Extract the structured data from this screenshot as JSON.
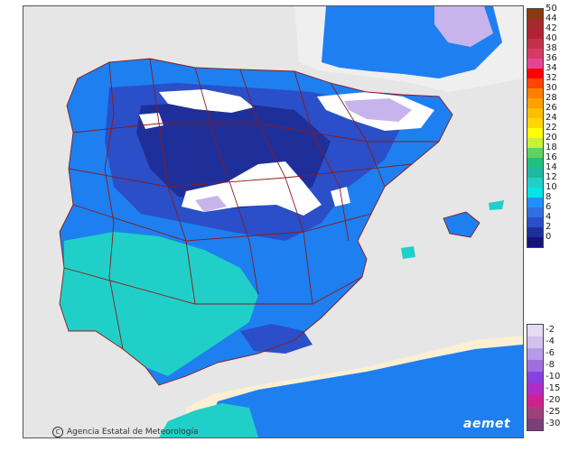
{
  "credit": {
    "text": "Agencia Estatal de Meteorología",
    "icon": "copyright-icon"
  },
  "logo": {
    "text": "aemet"
  },
  "legend": {
    "positive": [
      {
        "label": "50",
        "color": "#8b3a0f"
      },
      {
        "label": "44",
        "color": "#a52a2a"
      },
      {
        "label": "42",
        "color": "#b22234"
      },
      {
        "label": "40",
        "color": "#c4304a"
      },
      {
        "label": "38",
        "color": "#d63a66"
      },
      {
        "label": "36",
        "color": "#e84393"
      },
      {
        "label": "34",
        "color": "#ff0000"
      },
      {
        "label": "32",
        "color": "#ff4500"
      },
      {
        "label": "30",
        "color": "#ff7f00"
      },
      {
        "label": "28",
        "color": "#ff9f00"
      },
      {
        "label": "26",
        "color": "#ffbf00"
      },
      {
        "label": "24",
        "color": "#ffd700"
      },
      {
        "label": "22",
        "color": "#ffff00"
      },
      {
        "label": "20",
        "color": "#c8f03c"
      },
      {
        "label": "18",
        "color": "#5fd35f"
      },
      {
        "label": "16",
        "color": "#20c080"
      },
      {
        "label": "14",
        "color": "#1fb8a0"
      },
      {
        "label": "12",
        "color": "#20d0c8"
      },
      {
        "label": "10",
        "color": "#00e5e5"
      },
      {
        "label": "8",
        "color": "#1e90ff"
      },
      {
        "label": "6",
        "color": "#2f6fe0"
      },
      {
        "label": "4",
        "color": "#2a4fc8"
      },
      {
        "label": "2",
        "color": "#1f2f9a"
      },
      {
        "label": "0",
        "color": "#14147a"
      }
    ],
    "negative": [
      {
        "label": "-2",
        "color": "#e6dcf5"
      },
      {
        "label": "-4",
        "color": "#d2c0ef"
      },
      {
        "label": "-6",
        "color": "#b89be8"
      },
      {
        "label": "-8",
        "color": "#9f6fe0"
      },
      {
        "label": "-10",
        "color": "#8a3fe0"
      },
      {
        "label": "-15",
        "color": "#b02bc8"
      },
      {
        "label": "-20",
        "color": "#d0208f"
      },
      {
        "label": "-25",
        "color": "#a0407a"
      },
      {
        "label": "-30",
        "color": "#7a3f7a"
      }
    ]
  },
  "map_colors": {
    "sea": "#e6e6e6",
    "france": "#f0f0f0",
    "africa": "#fbf0d4",
    "boundary": "#8b1a1a",
    "band_warm": "#20d0c8",
    "band_mid": "#1e7ff0",
    "band_cool": "#2a4fc8",
    "band_cold": "#1f2f9a",
    "snow": "#ffffff",
    "frost": "#c8b4ec"
  }
}
